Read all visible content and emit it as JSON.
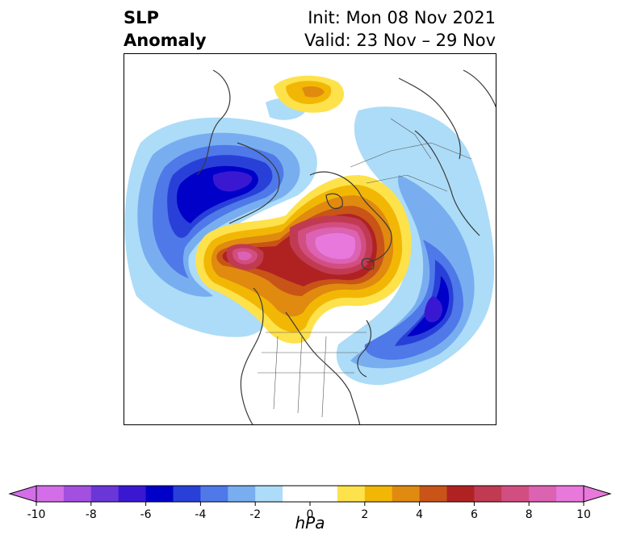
{
  "header": {
    "title_line1": "SLP",
    "title_line2": "Anomaly",
    "init": "Init: Mon 08 Nov 2021",
    "valid": "Valid: 23 Nov – 29 Nov"
  },
  "colorbar": {
    "units": "hPa",
    "ticks": [
      "-10",
      "-8",
      "-6",
      "-4",
      "-2",
      "0",
      "2",
      "4",
      "6",
      "8",
      "10"
    ],
    "colors": [
      "#d36ee8",
      "#a34fe0",
      "#6b36d8",
      "#3a18d2",
      "#0000c8",
      "#2840d8",
      "#4f78e8",
      "#78aef0",
      "#acdcf8",
      "#ffffff",
      "#ffffff",
      "#fde24c",
      "#f2b705",
      "#e08a10",
      "#c85418",
      "#b02222",
      "#c03a52",
      "#d24e80",
      "#dc62b2",
      "#e878dc"
    ]
  }
}
